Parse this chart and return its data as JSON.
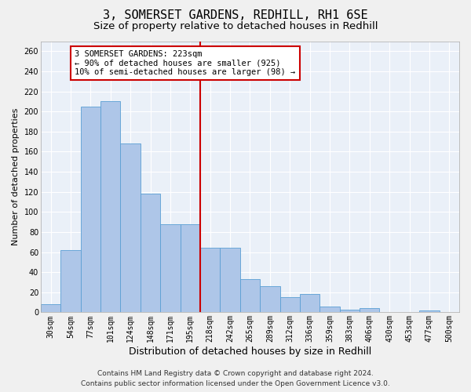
{
  "title": "3, SOMERSET GARDENS, REDHILL, RH1 6SE",
  "subtitle": "Size of property relative to detached houses in Redhill",
  "xlabel": "Distribution of detached houses by size in Redhill",
  "ylabel": "Number of detached properties",
  "categories": [
    "30sqm",
    "54sqm",
    "77sqm",
    "101sqm",
    "124sqm",
    "148sqm",
    "171sqm",
    "195sqm",
    "218sqm",
    "242sqm",
    "265sqm",
    "289sqm",
    "312sqm",
    "336sqm",
    "359sqm",
    "383sqm",
    "406sqm",
    "430sqm",
    "453sqm",
    "477sqm",
    "500sqm"
  ],
  "values": [
    8,
    62,
    205,
    210,
    168,
    118,
    88,
    88,
    64,
    64,
    33,
    26,
    15,
    18,
    6,
    3,
    4,
    0,
    0,
    2,
    0
  ],
  "bar_color": "#aec6e8",
  "bar_edge_color": "#5a9fd4",
  "vline_x_index": 8,
  "vline_color": "#cc0000",
  "annotation_title": "3 SOMERSET GARDENS: 223sqm",
  "annotation_line1": "← 90% of detached houses are smaller (925)",
  "annotation_line2": "10% of semi-detached houses are larger (98) →",
  "annotation_box_color": "#cc0000",
  "ylim": [
    0,
    270
  ],
  "yticks": [
    0,
    20,
    40,
    60,
    80,
    100,
    120,
    140,
    160,
    180,
    200,
    220,
    240,
    260
  ],
  "footer_line1": "Contains HM Land Registry data © Crown copyright and database right 2024.",
  "footer_line2": "Contains public sector information licensed under the Open Government Licence v3.0.",
  "bg_color": "#eaf0f8",
  "grid_color": "#ffffff",
  "title_fontsize": 11,
  "subtitle_fontsize": 9.5,
  "xlabel_fontsize": 9,
  "ylabel_fontsize": 8,
  "tick_fontsize": 7,
  "annotation_fontsize": 7.5,
  "footer_fontsize": 6.5
}
